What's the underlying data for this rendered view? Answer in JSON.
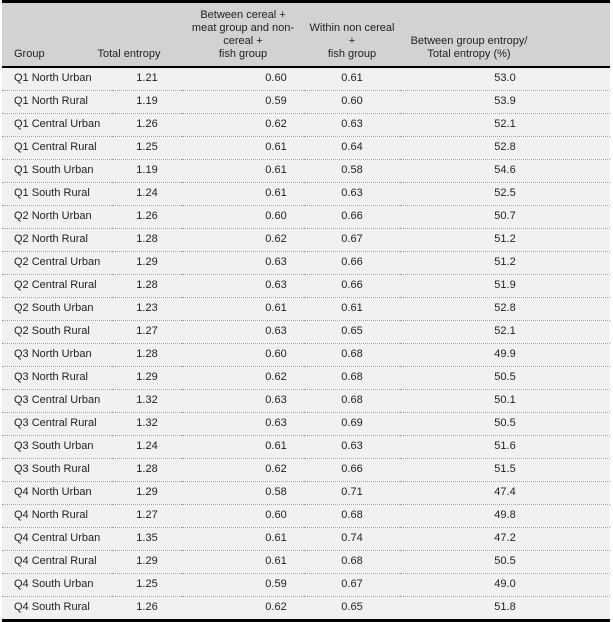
{
  "table": {
    "columns": [
      {
        "id": "group",
        "label": "Group"
      },
      {
        "id": "total_entropy",
        "label": "Total entropy"
      },
      {
        "id": "between",
        "label": "Between cereal +\nmeat group and non-cereal +\nfish group"
      },
      {
        "id": "within",
        "label": "Within non cereal +\nfish group"
      },
      {
        "id": "ratio",
        "label": "Between group entropy/\nTotal entropy (%)"
      }
    ],
    "rows": [
      {
        "group": "Q1 North Urban",
        "total_entropy": "1.21",
        "between": "0.60",
        "within": "0.61",
        "ratio": "53.0"
      },
      {
        "group": "Q1 North Rural",
        "total_entropy": "1.19",
        "between": "0.59",
        "within": "0.60",
        "ratio": "53.9"
      },
      {
        "group": "Q1 Central Urban",
        "total_entropy": "1.26",
        "between": "0.62",
        "within": "0.63",
        "ratio": "52.1"
      },
      {
        "group": "Q1 Central Rural",
        "total_entropy": "1.25",
        "between": "0.61",
        "within": "0.64",
        "ratio": "52.8"
      },
      {
        "group": "Q1 South Urban",
        "total_entropy": "1.19",
        "between": "0.61",
        "within": "0.58",
        "ratio": "54.6"
      },
      {
        "group": "Q1 South Rural",
        "total_entropy": "1.24",
        "between": "0.61",
        "within": "0.63",
        "ratio": "52.5"
      },
      {
        "group": "Q2 North Urban",
        "total_entropy": "1.26",
        "between": "0.60",
        "within": "0.66",
        "ratio": "50.7"
      },
      {
        "group": "Q2 North Rural",
        "total_entropy": "1.28",
        "between": "0.62",
        "within": "0.67",
        "ratio": "51.2"
      },
      {
        "group": "Q2 Central Urban",
        "total_entropy": "1.29",
        "between": "0.63",
        "within": "0.66",
        "ratio": "51.2"
      },
      {
        "group": "Q2 Central Rural",
        "total_entropy": "1.28",
        "between": "0.63",
        "within": "0.66",
        "ratio": "51.9"
      },
      {
        "group": "Q2 South Urban",
        "total_entropy": "1.23",
        "between": "0.61",
        "within": "0.61",
        "ratio": "52.8"
      },
      {
        "group": "Q2 South Rural",
        "total_entropy": "1.27",
        "between": "0.63",
        "within": "0.65",
        "ratio": "52.1"
      },
      {
        "group": "Q3 North Urban",
        "total_entropy": "1.28",
        "between": "0.60",
        "within": "0.68",
        "ratio": "49.9"
      },
      {
        "group": "Q3 North Rural",
        "total_entropy": "1.29",
        "between": "0.62",
        "within": "0.68",
        "ratio": "50.5"
      },
      {
        "group": "Q3 Central Urban",
        "total_entropy": "1.32",
        "between": "0.63",
        "within": "0.68",
        "ratio": "50.1"
      },
      {
        "group": "Q3 Central Rural",
        "total_entropy": "1.32",
        "between": "0.63",
        "within": "0.69",
        "ratio": "50.5"
      },
      {
        "group": "Q3 South Urban",
        "total_entropy": "1.24",
        "between": "0.61",
        "within": "0.63",
        "ratio": "51.6"
      },
      {
        "group": "Q3 South Rural",
        "total_entropy": "1.28",
        "between": "0.62",
        "within": "0.66",
        "ratio": "51.5"
      },
      {
        "group": "Q4 North Urban",
        "total_entropy": "1.29",
        "between": "0.58",
        "within": "0.71",
        "ratio": "47.4"
      },
      {
        "group": "Q4 North Rural",
        "total_entropy": "1.27",
        "between": "0.60",
        "within": "0.68",
        "ratio": "49.8"
      },
      {
        "group": "Q4 Central Urban",
        "total_entropy": "1.35",
        "between": "0.61",
        "within": "0.74",
        "ratio": "47.2"
      },
      {
        "group": "Q4 Central Rural",
        "total_entropy": "1.29",
        "between": "0.61",
        "within": "0.68",
        "ratio": "50.5"
      },
      {
        "group": "Q4 South Urban",
        "total_entropy": "1.25",
        "between": "0.59",
        "within": "0.67",
        "ratio": "49.0"
      },
      {
        "group": "Q4 South Rural",
        "total_entropy": "1.26",
        "between": "0.62",
        "within": "0.65",
        "ratio": "51.8"
      }
    ]
  },
  "colors": {
    "header_bg": "#d2d2d2",
    "row_bg": "#f1f1f1",
    "rule": "#000000",
    "row_divider": "#9e9e9e",
    "text": "#1f1f1f"
  }
}
